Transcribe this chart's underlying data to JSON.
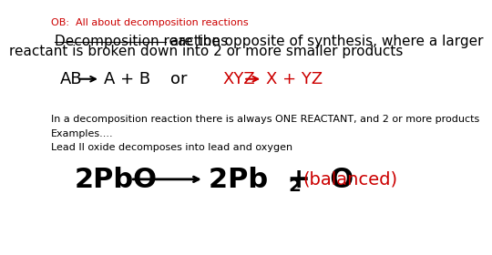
{
  "background_color": "#ffffff",
  "ob_text": "OB:  All about decomposition reactions",
  "ob_color": "#cc0000",
  "ob_fontsize": 8,
  "title_line1_prefix": "Decomposition reactions",
  "title_line1_suffix": " are the opposite of synthesis, where a larger",
  "title_line2": "reactant is broken down into 2 or more smaller products",
  "title_fontsize": 11,
  "title_color": "#000000",
  "underline_color": "#000000",
  "ab_label": "AB",
  "ab_product": "A + B",
  "or_label": "or",
  "xyz_label": "XYZ",
  "xyz_product": "X + YZ",
  "reaction_color": "#000000",
  "red_color": "#cc0000",
  "reaction_fontsize": 13,
  "info_text": "In a decomposition reaction there is always ONE REACTANT, and 2 or more products",
  "info_fontsize": 8,
  "examples_text": "Examples....",
  "examples_fontsize": 8,
  "lead_text": "Lead II oxide decomposes into lead and oxygen",
  "lead_fontsize": 8,
  "equation_2pbo": "2PbO",
  "equation_2pb": "2Pb  +  O",
  "equation_sub2": "2",
  "equation_balanced": "(balanced)",
  "equation_fontsize": 22,
  "equation_color": "#000000",
  "balanced_fontsize": 14
}
